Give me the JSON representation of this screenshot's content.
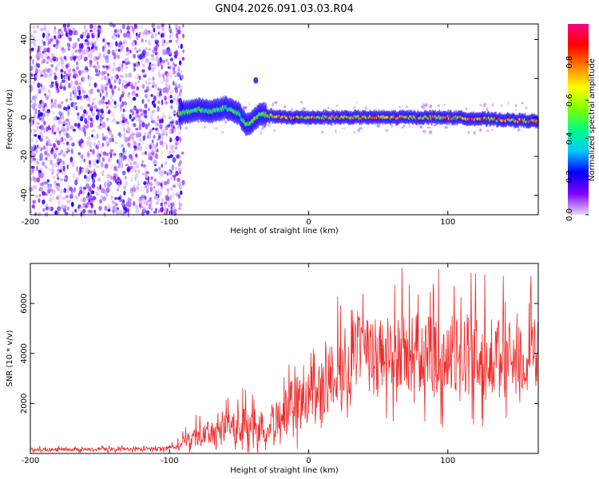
{
  "title": "GN04.2026.091.03.03.R04",
  "chart_data": [
    {
      "type": "heatmap",
      "title": "GN04.2026.091.03.03.R04",
      "xlabel": "Height of straight line (km)",
      "ylabel": "Frequency (Hz)",
      "xlim": [
        -200,
        165
      ],
      "ylim": [
        -50,
        48
      ],
      "xticks": [
        -200,
        -100,
        0,
        100
      ],
      "yticks": [
        -40,
        -20,
        0,
        20,
        40
      ],
      "colorbar": {
        "label": "Normalized spectral amplitude",
        "range": [
          0,
          1
        ],
        "ticks": [
          "0.0",
          "0.2",
          "0.4",
          "0.6",
          "0.8"
        ],
        "colormap": [
          "#e8d8ff",
          "#8000ff",
          "#0000ff",
          "#00c8ff",
          "#00ff80",
          "#80ff00",
          "#ffff00",
          "#ff8000",
          "#ff0000",
          "#ff0080"
        ]
      },
      "regions": [
        {
          "description": "broadband noise",
          "x_range": [
            -200,
            -90
          ],
          "freq_range": [
            -50,
            48
          ],
          "amplitude": 0.1
        },
        {
          "description": "signal trace",
          "x_range": [
            -93,
            165
          ],
          "freq_center": 0,
          "amplitude_max": 0.95
        }
      ],
      "trace": {
        "x": [
          -93,
          -80,
          -70,
          -60,
          -50,
          -45,
          -40,
          -35,
          -30,
          -20,
          0,
          50,
          100,
          165
        ],
        "freq": [
          2,
          4,
          3,
          5,
          2,
          -4,
          -2,
          2,
          1,
          0,
          0,
          0,
          0,
          -2
        ]
      }
    },
    {
      "type": "line",
      "xlabel": "Height of straight line (km)",
      "ylabel": "SNR (10 * v/v)",
      "xlim": [
        -200,
        165
      ],
      "ylim": [
        0,
        7600
      ],
      "xticks": [
        -200,
        -100,
        0,
        100
      ],
      "yticks": [
        2000,
        4000,
        6000
      ],
      "color": "#ee2a2a",
      "envelope": {
        "x": [
          -200,
          -110,
          -95,
          -90,
          -80,
          -70,
          -60,
          -50,
          -40,
          -30,
          -20,
          -10,
          0,
          10,
          20,
          30,
          50,
          80,
          100,
          120,
          140,
          165
        ],
        "mean": [
          150,
          170,
          250,
          450,
          700,
          750,
          900,
          1200,
          1000,
          1100,
          1600,
          2000,
          2300,
          2800,
          3200,
          3800,
          3900,
          4000,
          3900,
          3900,
          3800,
          3800
        ],
        "spread": [
          100,
          100,
          150,
          400,
          600,
          700,
          800,
          1000,
          900,
          1000,
          1300,
          1500,
          1600,
          1800,
          2000,
          2200,
          2300,
          2300,
          2300,
          2200,
          2200,
          2200
        ]
      }
    }
  ]
}
